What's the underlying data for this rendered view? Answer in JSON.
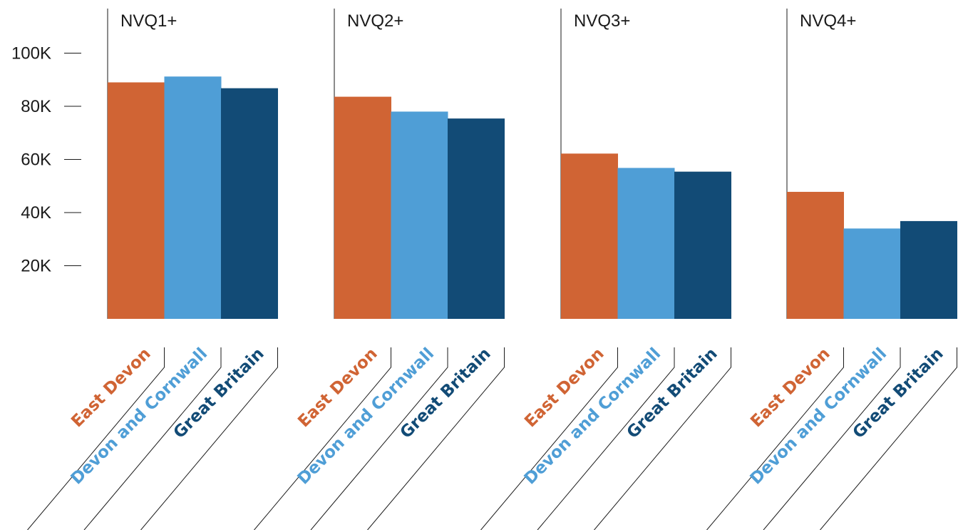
{
  "chart_data": {
    "type": "bar",
    "layout": "small-multiples",
    "y_ticks": [
      {
        "value": 20000,
        "label": "20K"
      },
      {
        "value": 40000,
        "label": "40K"
      },
      {
        "value": 60000,
        "label": "60K"
      },
      {
        "value": 80000,
        "label": "80K"
      },
      {
        "value": 100000,
        "label": "100K"
      }
    ],
    "ylim": [
      0,
      110000
    ],
    "grid": false,
    "categories": [
      "East Devon",
      "Devon and Cornwall",
      "Great Britain"
    ],
    "colors": {
      "East Devon": "#d06434",
      "Devon and Cornwall": "#4f9ed6",
      "Great Britain": "#124b76"
    },
    "groups": [
      {
        "label": "NVQ1+",
        "values": [
          89000,
          91200,
          86800
        ]
      },
      {
        "label": "NVQ2+",
        "values": [
          83600,
          78000,
          75400
        ]
      },
      {
        "label": "NVQ3+",
        "values": [
          62200,
          56800,
          55400
        ]
      },
      {
        "label": "NVQ4+",
        "values": [
          47800,
          34000,
          36800
        ]
      }
    ]
  }
}
